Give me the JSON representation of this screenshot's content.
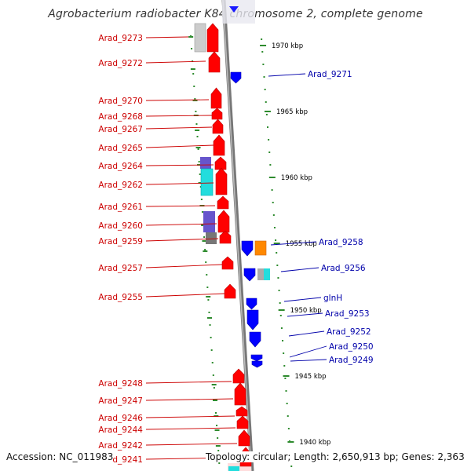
{
  "title": "Agrobacterium radiobacter K84 chromosome 2, complete genome",
  "footer": {
    "accession_label": "Accession:",
    "accession": "NC_011983",
    "topology_label": "Topology:",
    "topology": "circular;",
    "length_label": "Length:",
    "length": "2,650,913 bp;",
    "genes_label": "Genes:",
    "genes": "2,363"
  },
  "colors": {
    "forward_gene": "#ff0000",
    "reverse_gene": "#0000ff",
    "left_label": "#cc0000",
    "right_label": "#0000aa",
    "tick": "#2e8b2e",
    "backbone": "#888888",
    "orange_block": "#ff8800",
    "cyan_block": "#22dddd",
    "purple_block": "#6655cc",
    "gray_block": "#777777",
    "lightgray_block": "#cccccc"
  },
  "kbp_ticks": [
    {
      "label": "1970 kbp"
    },
    {
      "label": "1965 kbp"
    },
    {
      "label": "1960 kbp"
    },
    {
      "label": "1955 kbp"
    },
    {
      "label": "1950 kbp"
    },
    {
      "label": "1945 kbp"
    },
    {
      "label": "1940 kbp"
    }
  ],
  "left_genes": [
    {
      "label": "Arad_9273"
    },
    {
      "label": "Arad_9272"
    },
    {
      "label": "Arad_9270"
    },
    {
      "label": "Arad_9268"
    },
    {
      "label": "Arad_9267"
    },
    {
      "label": "Arad_9265"
    },
    {
      "label": "Arad_9264"
    },
    {
      "label": "Arad_9262"
    },
    {
      "label": "Arad_9261"
    },
    {
      "label": "Arad_9260"
    },
    {
      "label": "Arad_9259"
    },
    {
      "label": "Arad_9257"
    },
    {
      "label": "Arad_9255"
    },
    {
      "label": "Arad_9248"
    },
    {
      "label": "Arad_9247"
    },
    {
      "label": "Arad_9246"
    },
    {
      "label": "Arad_9244"
    },
    {
      "label": "Arad_9242"
    },
    {
      "label": "Arad_9241"
    }
  ],
  "right_genes": [
    {
      "label": "Arad_9271"
    },
    {
      "label": "Arad_9258"
    },
    {
      "label": "Arad_9256"
    },
    {
      "label": "glnH"
    },
    {
      "label": "Arad_9253"
    },
    {
      "label": "Arad_9252"
    },
    {
      "label": "Arad_9250"
    },
    {
      "label": "Arad_9249"
    }
  ]
}
